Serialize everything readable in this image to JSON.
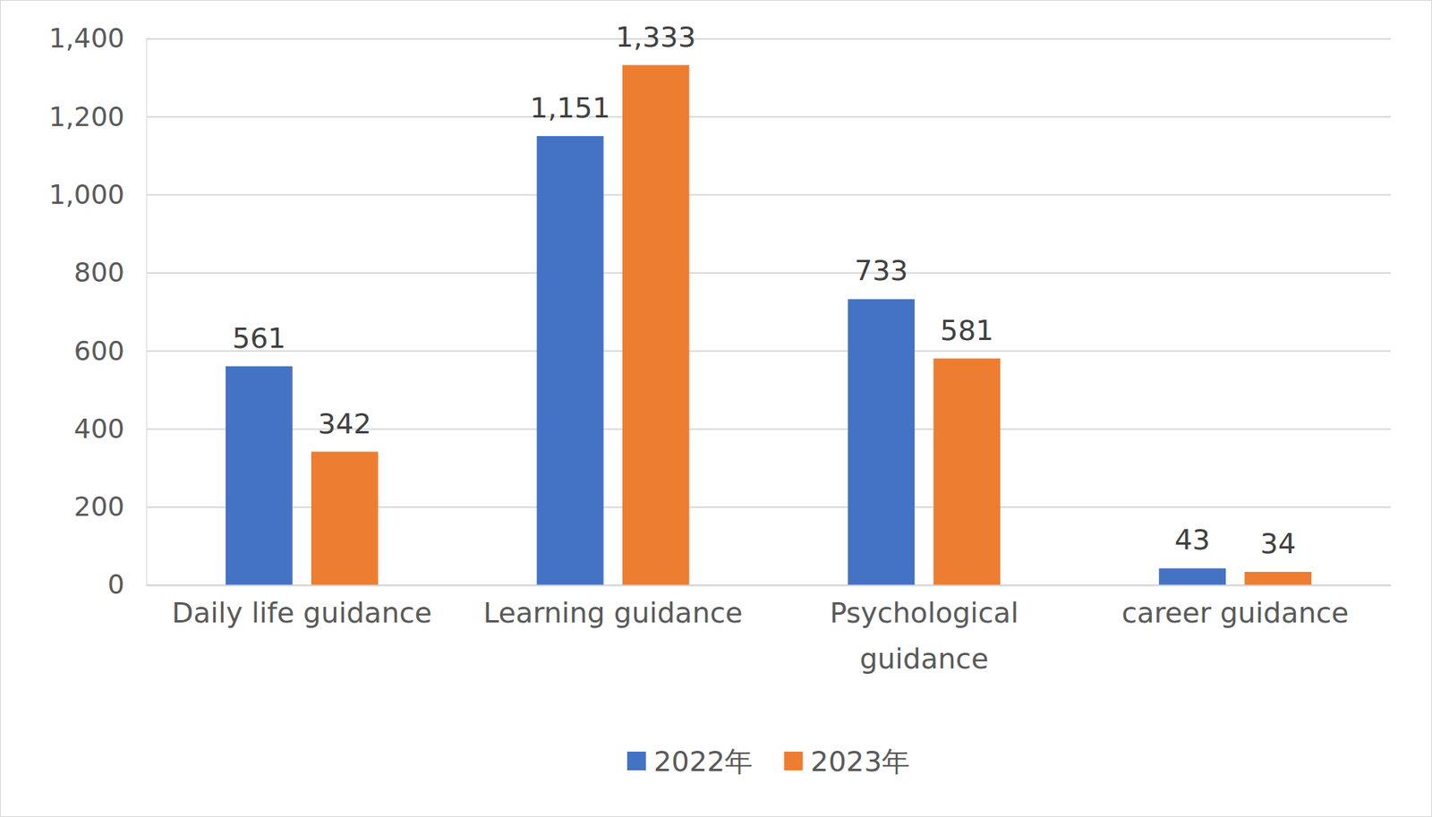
{
  "chart_data": {
    "type": "bar",
    "categories": [
      "Daily life guidance",
      "Learning guidance",
      "Psychological guidance",
      "career guidance"
    ],
    "series": [
      {
        "name": "2022年",
        "color": "#4472c4",
        "values": [
          561,
          1151,
          733,
          43
        ],
        "value_labels": [
          "561",
          "1,151",
          "733",
          "43"
        ]
      },
      {
        "name": "2023年",
        "color": "#ed7d31",
        "values": [
          342,
          1333,
          581,
          34
        ],
        "value_labels": [
          "342",
          "1,333",
          "581",
          "34"
        ]
      }
    ],
    "ylim": [
      0,
      1400
    ],
    "yticks": [
      0,
      200,
      400,
      600,
      800,
      {
        "value": 1000,
        "label": "1,000"
      },
      {
        "value": 1200,
        "label": "1,200"
      },
      {
        "value": 1400,
        "label": "1,400"
      }
    ],
    "grid": true,
    "data_labels": true,
    "legend": "bottom"
  }
}
